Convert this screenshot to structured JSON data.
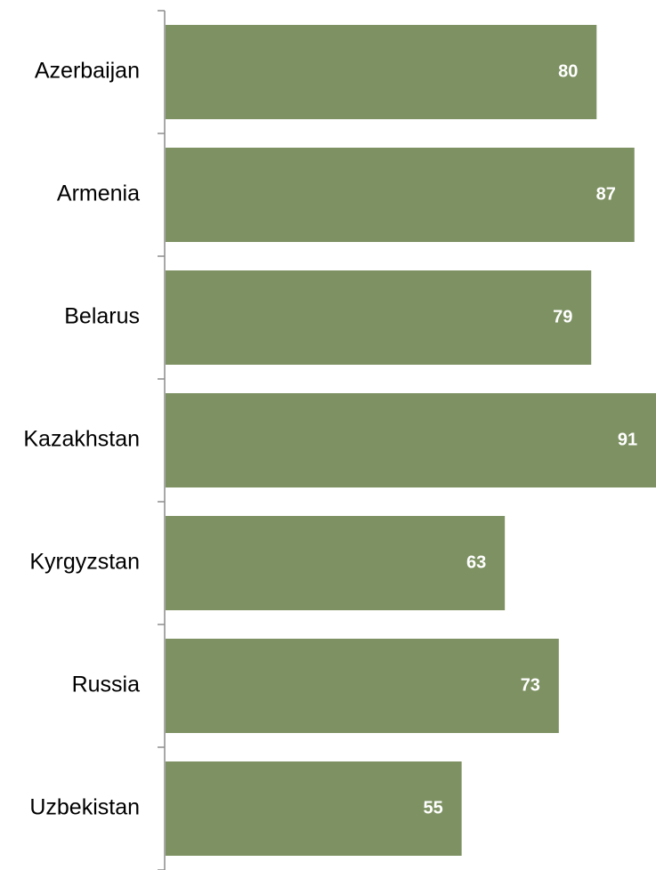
{
  "chart_data": {
    "type": "bar",
    "orientation": "horizontal",
    "categories": [
      "Azerbaijan",
      "Armenia",
      "Belarus",
      "Kazakhstan",
      "Kyrgyzstan",
      "Russia",
      "Uzbekistan"
    ],
    "values": [
      80,
      87,
      79,
      91,
      63,
      73,
      55
    ],
    "data_labels": [
      "80",
      "87",
      "79",
      "91",
      "63",
      "73",
      "55"
    ],
    "title": "",
    "xlabel": "",
    "ylabel": "",
    "xlim": [
      0,
      91
    ],
    "grid": false,
    "legend": "none",
    "colors": {
      "bar": "#7d9162",
      "axis": "#8c8c8c",
      "label_text": "#000000",
      "value_text": "#ffffff"
    }
  }
}
